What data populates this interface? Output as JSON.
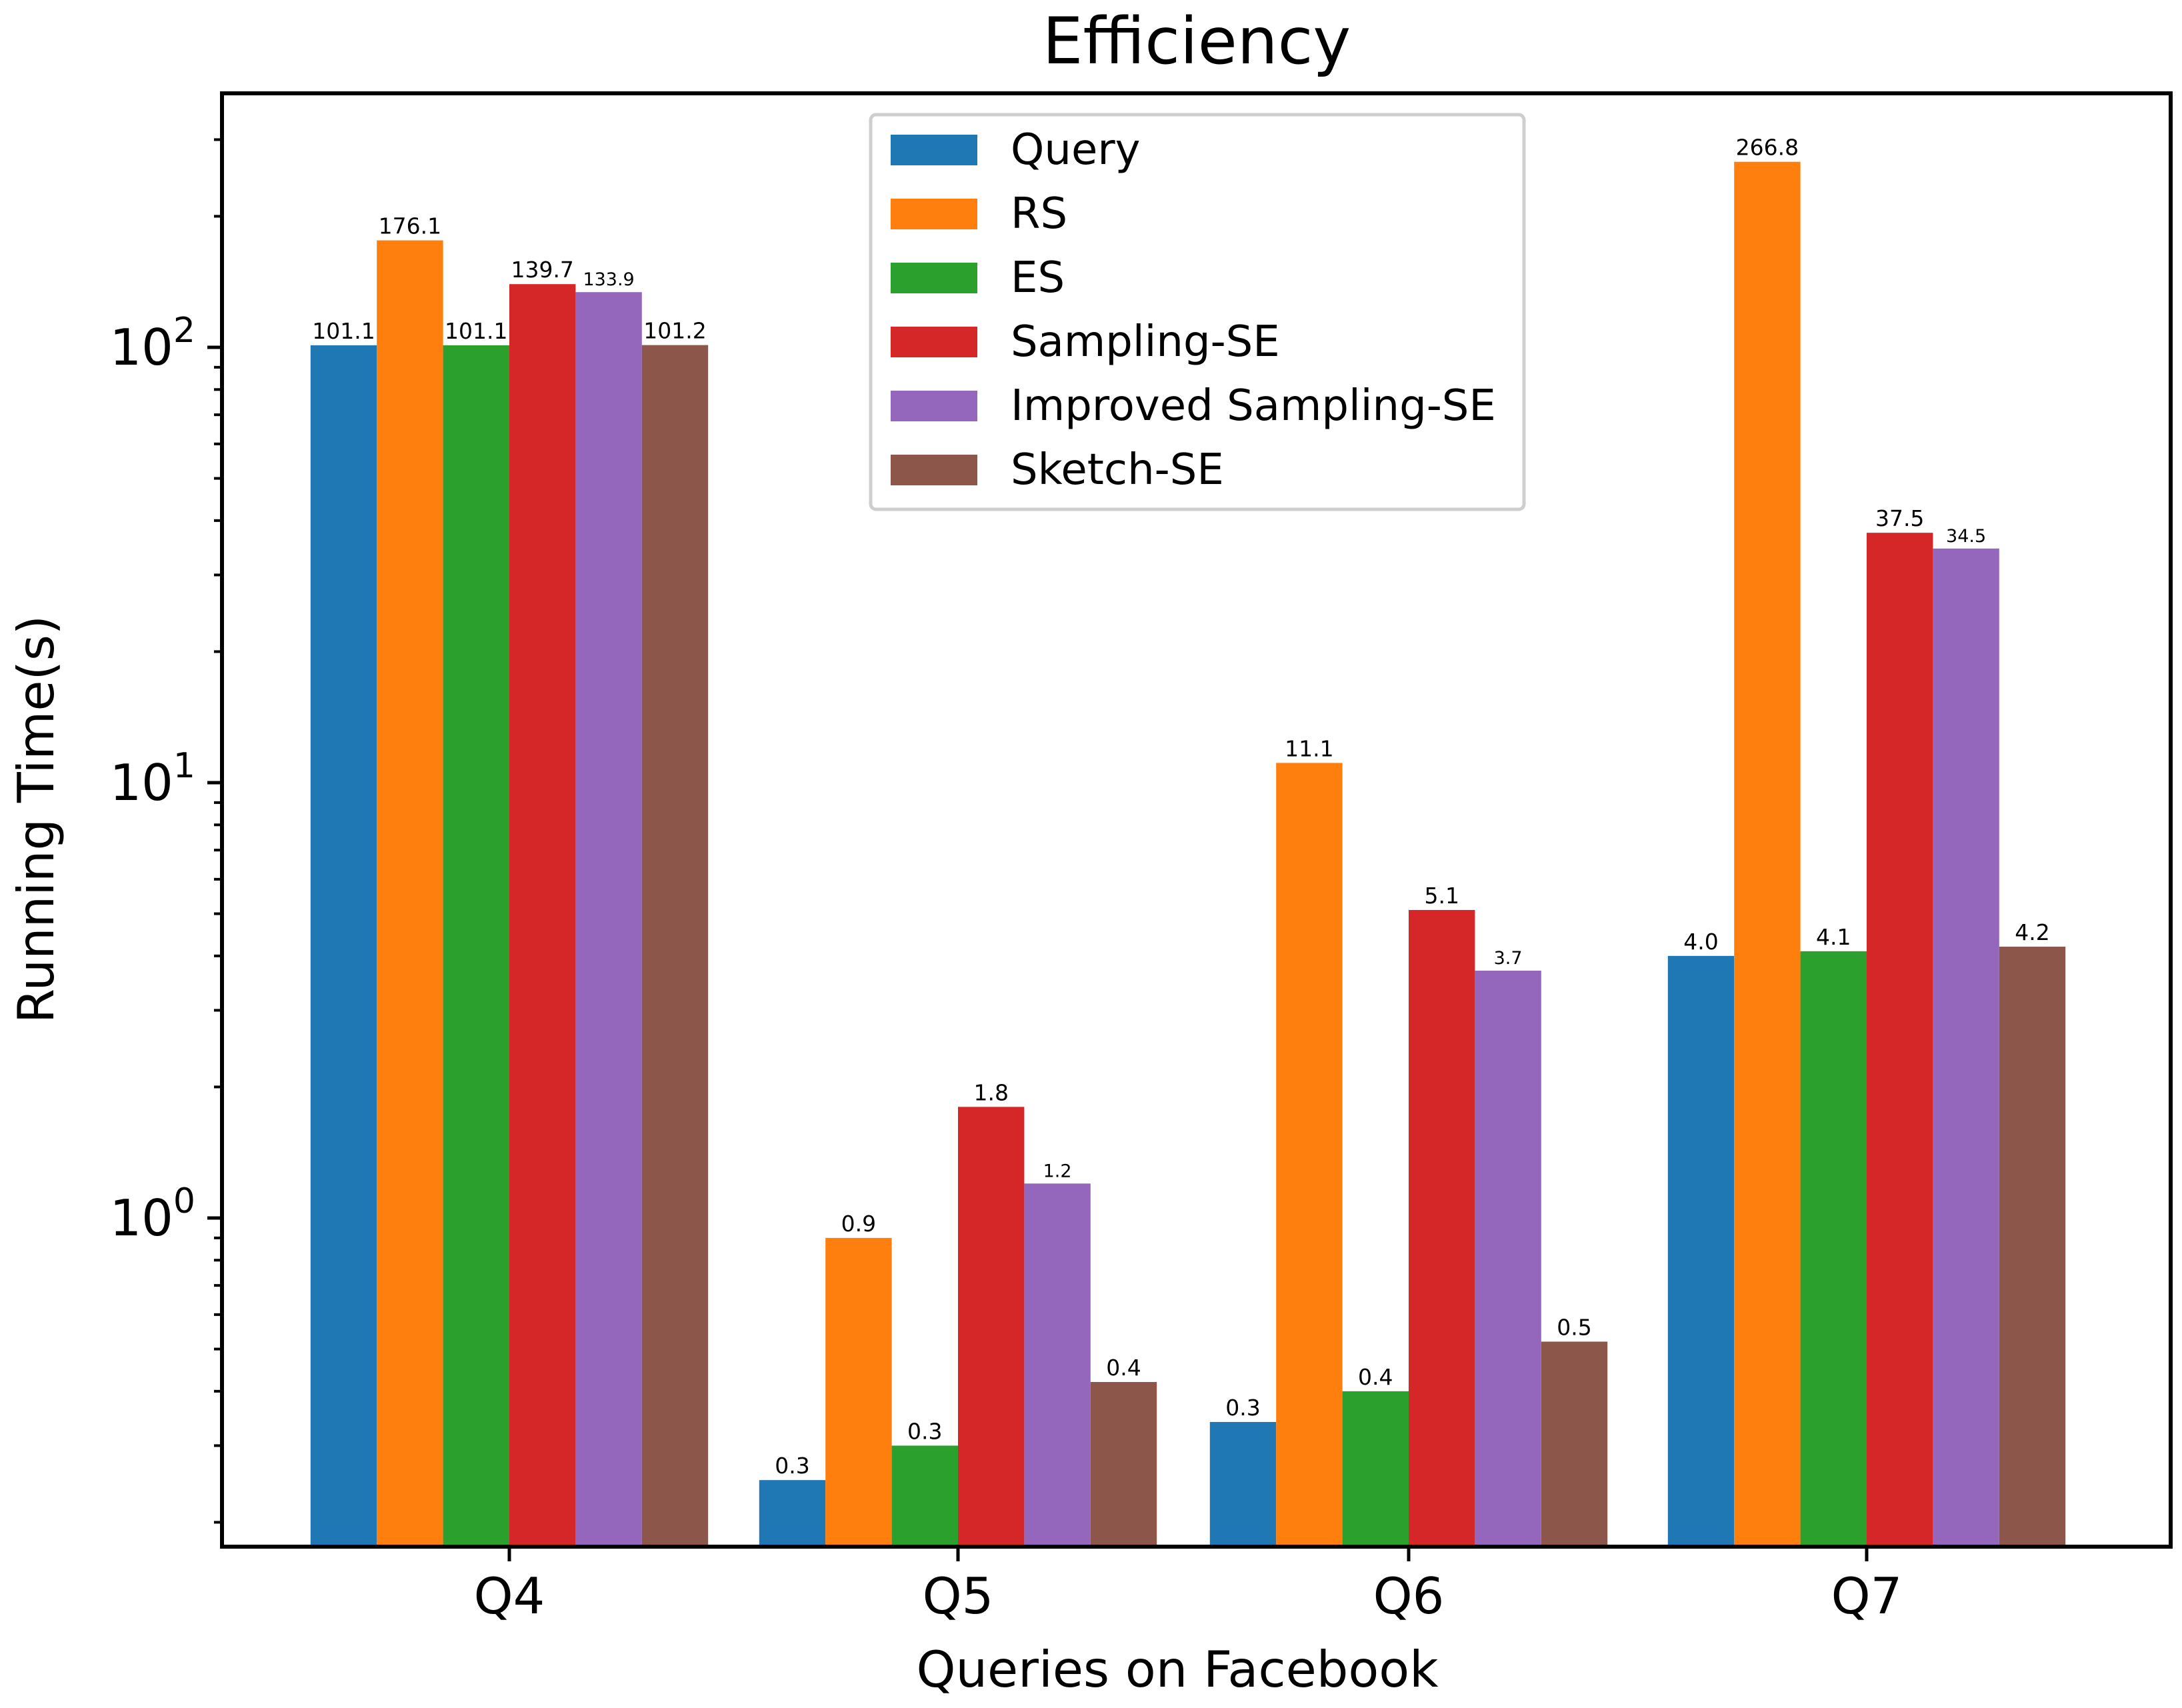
{
  "chart_data": {
    "type": "bar",
    "title": "Efficiency",
    "xlabel": "Queries on Facebook",
    "ylabel": "Running Time(s)",
    "yscale": "log",
    "ylim": [
      0.18,
      420
    ],
    "yticks": [
      {
        "value": 1,
        "base": "10",
        "exp": "0"
      },
      {
        "value": 10,
        "base": "10",
        "exp": "1"
      },
      {
        "value": 100,
        "base": "10",
        "exp": "2"
      }
    ],
    "categories": [
      "Q4",
      "Q5",
      "Q6",
      "Q7"
    ],
    "legend_position": "upper-center",
    "series": [
      {
        "name": "Query",
        "color": "#1f77b4",
        "values": [
          101.1,
          0.25,
          0.34,
          4.0
        ],
        "labels": [
          "101.1",
          "0.3",
          "0.3",
          "4.0"
        ],
        "label_size": "normal"
      },
      {
        "name": "RS",
        "color": "#ff7f0e",
        "values": [
          176.1,
          0.9,
          11.1,
          266.8
        ],
        "labels": [
          "176.1",
          "0.9",
          "11.1",
          "266.8"
        ],
        "label_size": "normal"
      },
      {
        "name": "ES",
        "color": "#2ca02c",
        "values": [
          101.1,
          0.3,
          0.4,
          4.1
        ],
        "labels": [
          "101.1",
          "0.3",
          "0.4",
          "4.1"
        ],
        "label_size": "normal"
      },
      {
        "name": "Sampling-SE",
        "color": "#d62728",
        "values": [
          139.7,
          1.8,
          5.1,
          37.5
        ],
        "labels": [
          "139.7",
          "1.8",
          "5.1",
          "37.5"
        ],
        "label_size": "normal"
      },
      {
        "name": "Improved Sampling-SE",
        "color": "#9467bd",
        "values": [
          133.9,
          1.2,
          3.7,
          34.5
        ],
        "labels": [
          "133.9",
          "1.2",
          "3.7",
          "34.5"
        ],
        "label_size": "small"
      },
      {
        "name": "Sketch-SE",
        "color": "#8c564b",
        "values": [
          101.2,
          0.42,
          0.52,
          4.2
        ],
        "labels": [
          "101.2",
          "0.4",
          "0.5",
          "4.2"
        ],
        "label_size": "normal"
      }
    ]
  }
}
